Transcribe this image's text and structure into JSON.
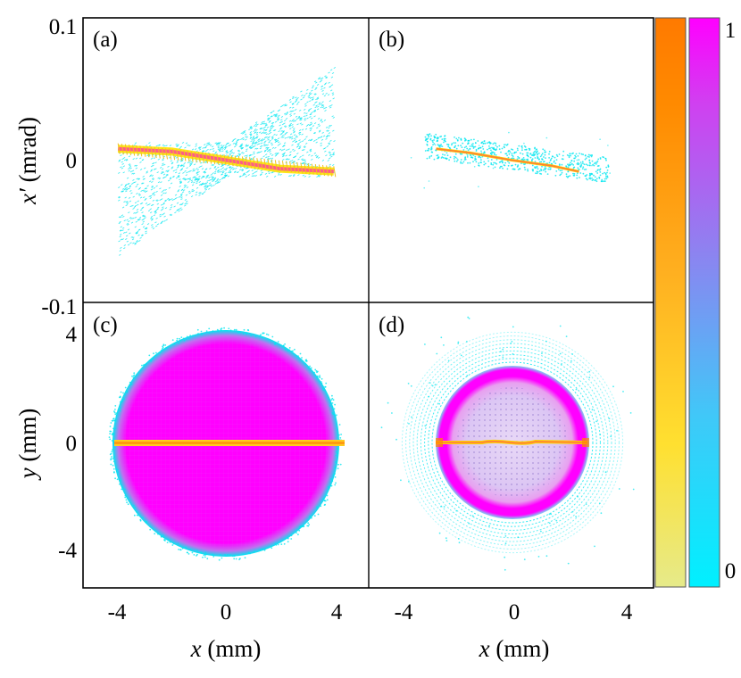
{
  "chart_data": [
    {
      "panel": "(a)",
      "type": "scatter",
      "ylabel_symbol": "x′",
      "ylabel_unit": "(mrad)",
      "xlim": [
        -5.3,
        5.3
      ],
      "ylim": [
        -0.1,
        0.1
      ],
      "yticks": [
        "0.1",
        "0",
        "-0.1"
      ],
      "description_points": {
        "core_line": [
          [
            -4,
            0.008
          ],
          [
            -2,
            0.006
          ],
          [
            0,
            0.0
          ],
          [
            2,
            -0.006
          ],
          [
            4,
            -0.008
          ]
        ],
        "envelope_top": [
          [
            -4,
            0.012
          ],
          [
            0,
            0.0
          ],
          [
            4,
            0.065
          ]
        ],
        "envelope_bottom": [
          [
            -4,
            -0.068
          ],
          [
            0,
            0.0
          ],
          [
            4,
            -0.012
          ]
        ]
      }
    },
    {
      "panel": "(b)",
      "type": "scatter",
      "xlim": [
        -5.3,
        5.3
      ],
      "ylim": [
        -0.1,
        0.1
      ],
      "description_points": {
        "core_line": [
          [
            -2.8,
            0.008
          ],
          [
            -1.5,
            0.005
          ],
          [
            0,
            0.0
          ],
          [
            1.5,
            -0.004
          ],
          [
            2.5,
            -0.008
          ]
        ],
        "envelope_top": [
          [
            -2.8,
            0.01
          ],
          [
            3.5,
            0.004
          ]
        ],
        "envelope_bottom": [
          [
            -3.2,
            -0.004
          ],
          [
            2.8,
            -0.012
          ]
        ]
      }
    },
    {
      "panel": "(c)",
      "type": "scatter",
      "xlabel_symbol": "x",
      "xlabel_unit": "(mm)",
      "ylabel_symbol": "y",
      "ylabel_unit": "(mm)",
      "xlim": [
        -5.3,
        5.3
      ],
      "ylim": [
        -5.3,
        5.3
      ],
      "xticks": [
        "-4",
        "0",
        "4"
      ],
      "yticks": [
        "4",
        "0",
        "-4"
      ],
      "description_points": {
        "disk_radius": 4.2,
        "core_line_y": 0,
        "core_line_x": [
          -4.1,
          4.1
        ]
      }
    },
    {
      "panel": "(d)",
      "type": "scatter",
      "xlabel_symbol": "x",
      "xlabel_unit": "(mm)",
      "xlim": [
        -5.3,
        5.3
      ],
      "ylim": [
        -5.3,
        5.3
      ],
      "xticks": [
        "-4",
        "0",
        "4"
      ],
      "description_points": {
        "halo_radius": 3.5,
        "ring_outer_radius": 2.6,
        "ring_inner_radius": 2.2,
        "core_line_y": 0,
        "core_line_x": [
          -2.8,
          2.6
        ]
      }
    }
  ],
  "colorbars": {
    "orange": {
      "stops": [
        "#e6ea8a",
        "#ffe030",
        "#ffb020",
        "#ff8a00",
        "#ff7a00"
      ]
    },
    "magenta": {
      "stops": [
        "#00f0ff",
        "#40c8f8",
        "#9080f0",
        "#d040f0",
        "#ff00ff"
      ]
    },
    "tick_max": "1",
    "tick_min": "0"
  },
  "colors": {
    "cyan": "#00e6f0",
    "magenta": "#ff00ff",
    "orange": "#ff8800",
    "yellow": "#ffe400"
  }
}
